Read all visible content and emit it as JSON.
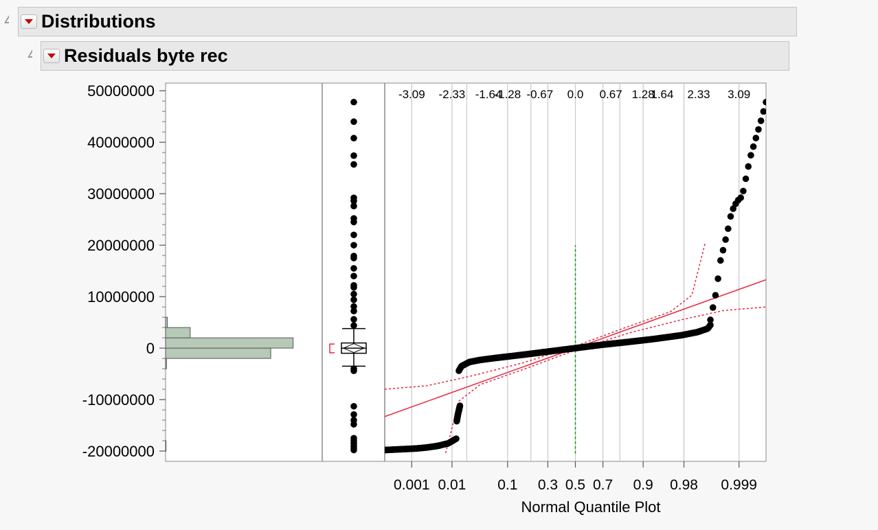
{
  "outline": {
    "distributions_title": "Distributions",
    "residuals_title": "Residuals byte rec"
  },
  "icons": {
    "disclosure": "disclosure-triangle-icon",
    "red_menu": "red-triangle-menu-icon"
  },
  "colors": {
    "histogram_fill": "#b7c9b7",
    "histogram_stroke": "#555555",
    "points": "#000000",
    "reference_line": "#e8243c",
    "confidence_band": "#e8243c",
    "median_line": "#1a9a1a",
    "gridline": "#c8c8c8",
    "background": "#ffffff"
  },
  "chart_data": {
    "type": "distribution",
    "ylim": [
      -22000000,
      51500000
    ],
    "y_ticks": [
      "50000000",
      "40000000",
      "30000000",
      "20000000",
      "10000000",
      "0",
      "-10000000",
      "-20000000"
    ],
    "y_tick_values": [
      50000000,
      40000000,
      30000000,
      20000000,
      10000000,
      0,
      -10000000,
      -20000000
    ],
    "histogram": {
      "bins": [
        {
          "low": -20000000,
          "high": -18000000,
          "count": 2
        },
        {
          "low": -4000000,
          "high": -2000000,
          "count": 4
        },
        {
          "low": -2000000,
          "high": 0,
          "count": 470
        },
        {
          "low": 0,
          "high": 2000000,
          "count": 570
        },
        {
          "low": 2000000,
          "high": 4000000,
          "count": 110
        },
        {
          "low": 4000000,
          "high": 6000000,
          "count": 8
        }
      ],
      "max_count": 700
    },
    "box_plot": {
      "whisker_high": 3800000,
      "q3": 1000000,
      "median": 0,
      "q1": -1000000,
      "whisker_low": -3500000,
      "shortest_half": [
        -900000,
        800000
      ],
      "outliers": [
        47800000,
        44000000,
        40800000,
        37400000,
        35700000,
        29200000,
        28600000,
        27600000,
        25200000,
        24500000,
        22000000,
        20000000,
        17900000,
        17500000,
        15500000,
        14000000,
        12200000,
        11800000,
        10500000,
        9400000,
        8100000,
        7200000,
        5600000,
        4400000,
        -4000000,
        -4400000,
        -11300000,
        -12900000,
        -14000000,
        -14800000,
        -17500000,
        -18000000,
        -18500000,
        -19000000,
        -19400000,
        -19800000
      ]
    },
    "normal_quantile": {
      "xlabel": "Normal Quantile Plot",
      "top_ticks": [
        "-3.09",
        "-2.33",
        "-1.64",
        "-1.28",
        "-0.67",
        "0.0",
        "0.67",
        "1.28",
        "1.64",
        "2.33",
        "3.09"
      ],
      "top_tick_values": [
        -3.09,
        -2.33,
        -1.64,
        -1.28,
        -0.67,
        0.0,
        0.67,
        1.28,
        1.64,
        2.33,
        3.09
      ],
      "bottom_ticks": [
        "0.001",
        "0.01",
        "0.1",
        "0.3",
        "0.5",
        "0.7",
        "0.9",
        "0.98",
        "0.999"
      ],
      "bottom_tick_z": [
        -3.09,
        -2.33,
        -1.28,
        -0.52,
        0.0,
        0.52,
        1.28,
        2.05,
        3.09
      ],
      "extra_gridlines_z": [
        -2.05,
        -0.84,
        0.84,
        2.05
      ],
      "x_range": [
        -3.6,
        3.6
      ],
      "fit_line": {
        "z": [
          -3.6,
          3.6
        ],
        "y": [
          -13300000,
          13300000
        ]
      },
      "curve_segments": [
        {
          "z": [
            -3.6,
            -3.4,
            -3.2,
            -3.0,
            -2.8,
            -2.6,
            -2.4,
            -2.25
          ],
          "y": [
            -19800000,
            -19700000,
            -19600000,
            -19500000,
            -19300000,
            -19000000,
            -18500000,
            -17600000
          ]
        },
        {
          "z": [
            -2.24,
            -2.22,
            -2.2,
            -2.18
          ],
          "y": [
            -14200000,
            -13000000,
            -12100000,
            -11200000
          ]
        },
        {
          "z": [
            -2.2,
            -2.15,
            -2.0,
            -1.8,
            -1.5,
            -1.0,
            -0.5,
            0.0,
            0.5,
            1.0,
            1.5,
            2.0,
            2.3,
            2.5,
            2.55
          ],
          "y": [
            -4400000,
            -3500000,
            -2700000,
            -2300000,
            -1900000,
            -1300000,
            -650000,
            0,
            650000,
            1200000,
            1800000,
            2500000,
            3100000,
            3800000,
            4500000
          ]
        },
        {
          "z": [
            2.55,
            2.58,
            2.62,
            2.66,
            2.7,
            2.74,
            2.8,
            2.88,
            2.95,
            3.05,
            3.15,
            3.3,
            3.5,
            3.6
          ],
          "y": [
            5500000,
            7000000,
            9000000,
            11000000,
            14000000,
            17000000,
            19500000,
            23000000,
            26500000,
            28500000,
            29500000,
            37000000,
            44000000,
            47800000
          ]
        }
      ],
      "confidence_upper": {
        "z": [
          -3.6,
          -2.8,
          -2.0,
          -1.0,
          0.0,
          1.0,
          1.8,
          2.2,
          2.45
        ],
        "y": [
          -8000000,
          -7300000,
          -5500000,
          -2900000,
          400000,
          4200000,
          7100000,
          10300000,
          20400000
        ]
      },
      "confidence_lower": {
        "z": [
          -2.45,
          -2.2,
          -1.8,
          -1.0,
          0.0,
          1.0,
          2.0,
          2.8,
          3.6
        ],
        "y": [
          -20400000,
          -10300000,
          -7100000,
          -4200000,
          -400000,
          2900000,
          5500000,
          7300000,
          8000000
        ]
      },
      "median_line": {
        "z": 0.0,
        "y": [
          -20500000,
          20000000
        ]
      }
    }
  }
}
